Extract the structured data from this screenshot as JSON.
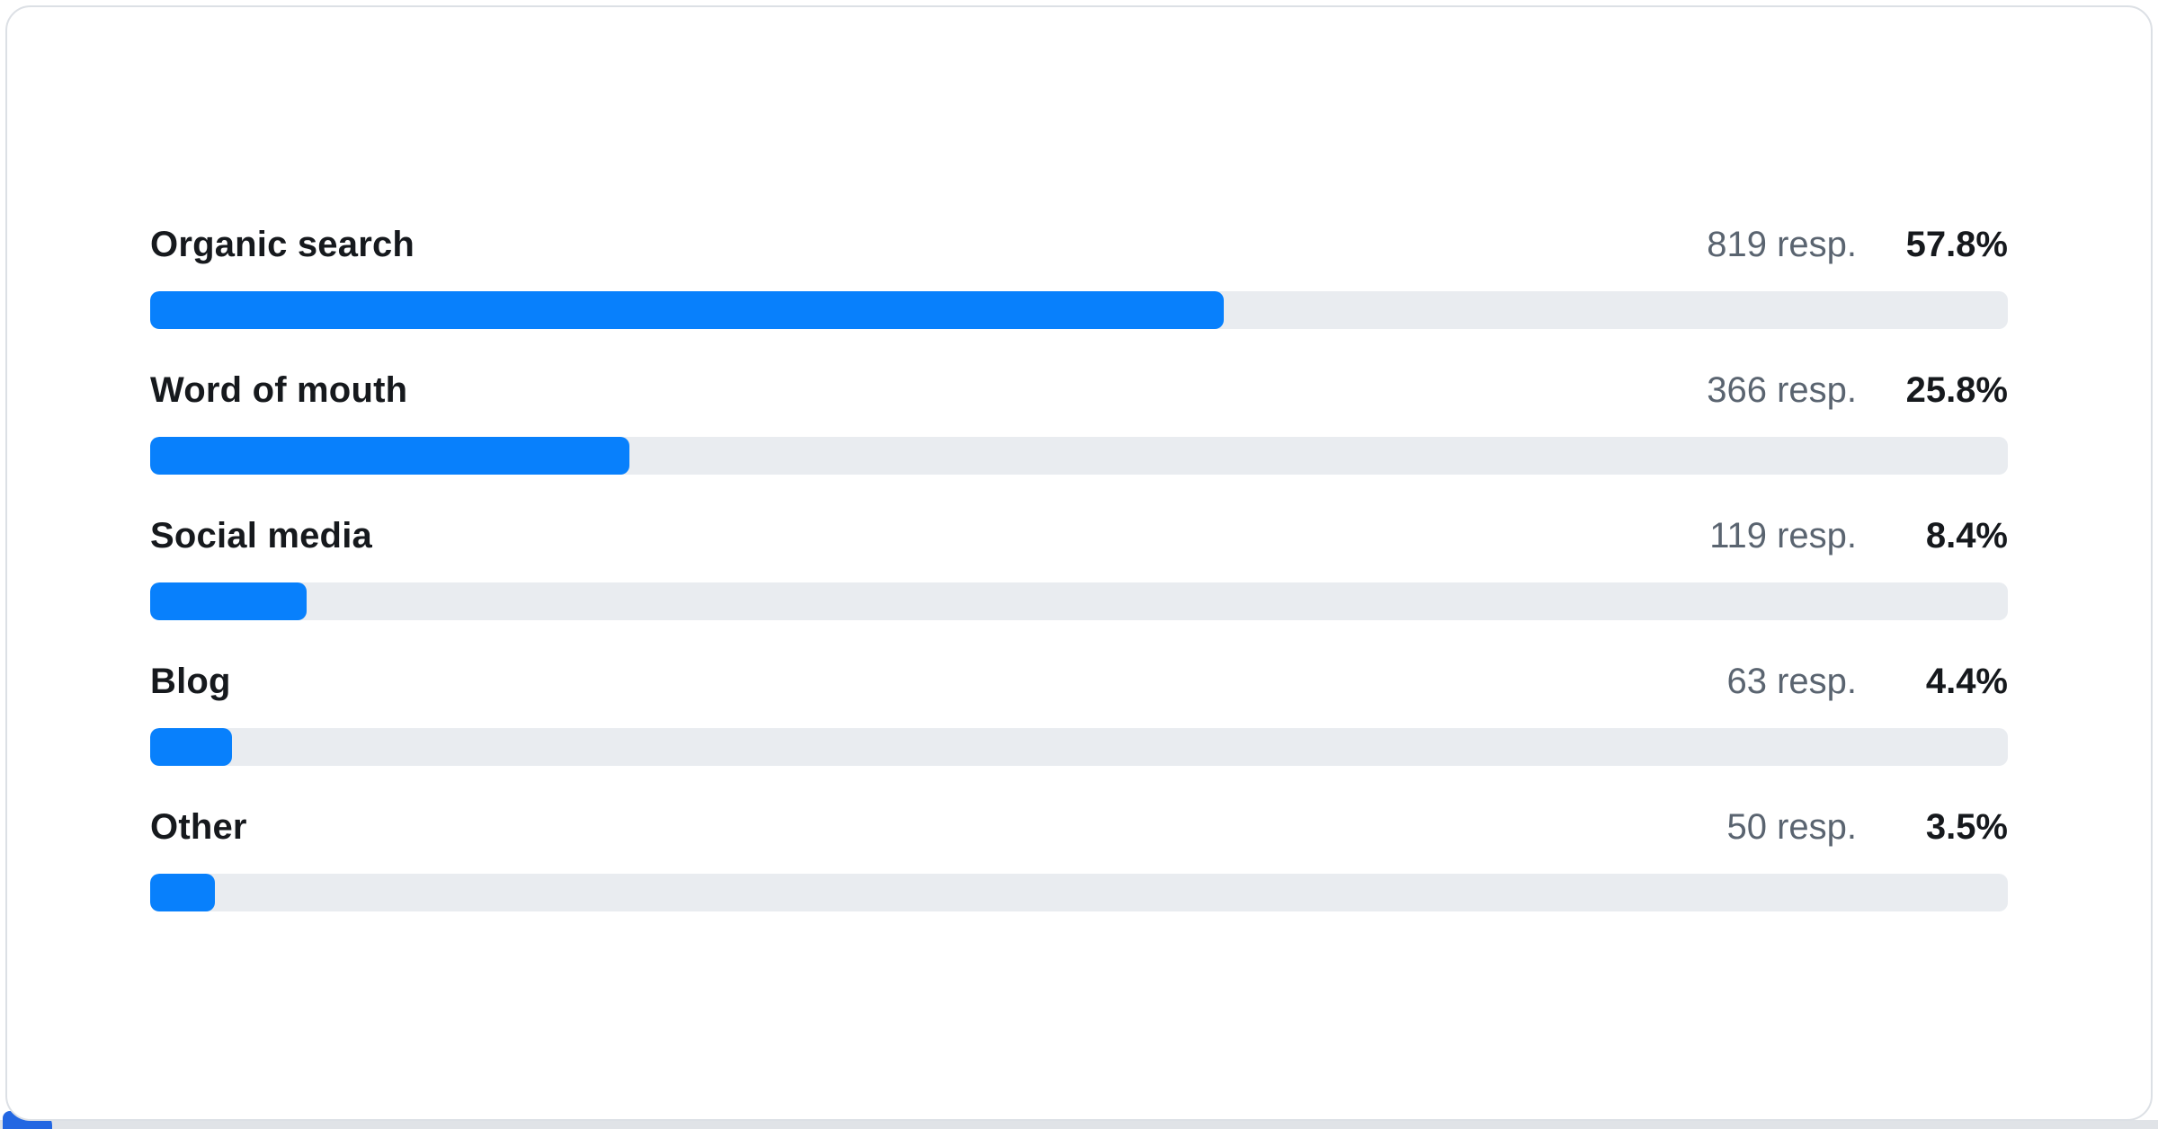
{
  "colors": {
    "accent_blue": "#0880fc",
    "track_gray": "#e9ecf0",
    "label_text": "#16191d",
    "responses_text": "#5a6470",
    "card_border": "#dce0e5",
    "page_background": "#ffffff",
    "bottom_strip": "#e0e3e7",
    "corner_accent_blue": "#2367e2"
  },
  "chart_data": {
    "type": "bar",
    "orientation": "horizontal",
    "title": "",
    "xlabel": "",
    "ylabel": "",
    "xlim": [
      0,
      100
    ],
    "grid": false,
    "legend": false,
    "unit_suffix": "resp.",
    "categories": [
      "Organic search",
      "Word of mouth",
      "Social media",
      "Blog",
      "Other"
    ],
    "series": [
      {
        "name": "Responses",
        "values": [
          819,
          366,
          119,
          63,
          50
        ]
      },
      {
        "name": "Percent",
        "values": [
          57.8,
          25.8,
          8.4,
          4.4,
          3.5
        ]
      }
    ],
    "rows": [
      {
        "label": "Organic search",
        "responses": "819 resp.",
        "percent": "57.8%",
        "pct": 57.8
      },
      {
        "label": "Word of mouth",
        "responses": "366 resp.",
        "percent": "25.8%",
        "pct": 25.8
      },
      {
        "label": "Social media",
        "responses": "119 resp.",
        "percent": "8.4%",
        "pct": 8.4
      },
      {
        "label": "Blog",
        "responses": "63 resp.",
        "percent": "4.4%",
        "pct": 4.4
      },
      {
        "label": "Other",
        "responses": "50 resp.",
        "percent": "3.5%",
        "pct": 3.5
      }
    ]
  }
}
